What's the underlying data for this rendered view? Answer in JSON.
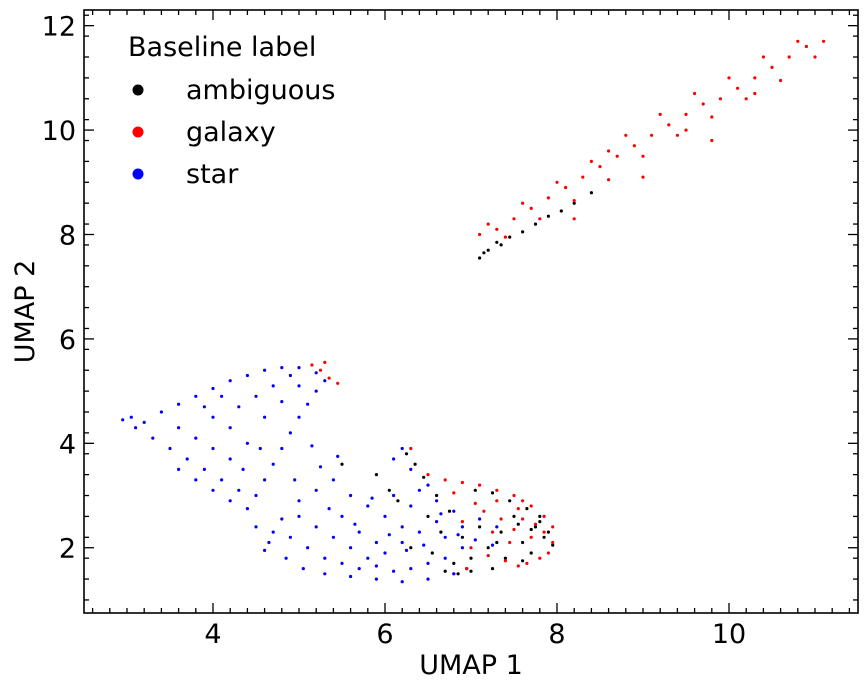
{
  "chart_data": {
    "type": "scatter",
    "title": "",
    "xlabel": "UMAP 1",
    "ylabel": "UMAP 2",
    "xlim": [
      2.5,
      11.5
    ],
    "ylim": [
      0.75,
      12.3
    ],
    "xticks": [
      4,
      6,
      8,
      10
    ],
    "yticks": [
      2,
      4,
      6,
      8,
      10,
      12
    ],
    "xtick_labels": [
      "4",
      "6",
      "8",
      "10"
    ],
    "ytick_labels": [
      "2",
      "4",
      "6",
      "8",
      "10",
      "12"
    ],
    "grid": false,
    "legend": {
      "title": "Baseline label",
      "placement": "top-left",
      "entries": [
        "ambiguous",
        "galaxy",
        "star"
      ]
    },
    "series": [
      {
        "name": "ambiguous",
        "color": "#000000",
        "points": [
          [
            6.25,
            3.8
          ],
          [
            6.35,
            3.6
          ],
          [
            6.45,
            3.35
          ],
          [
            6.6,
            3.0
          ],
          [
            6.75,
            2.7
          ],
          [
            6.9,
            2.2
          ],
          [
            7.0,
            1.8
          ],
          [
            7.2,
            2.0
          ],
          [
            7.35,
            2.3
          ],
          [
            7.5,
            2.6
          ],
          [
            7.6,
            2.1
          ],
          [
            7.7,
            1.9
          ],
          [
            7.75,
            2.4
          ],
          [
            7.8,
            2.5
          ],
          [
            7.85,
            2.2
          ],
          [
            7.8,
            2.6
          ],
          [
            7.7,
            2.35
          ],
          [
            7.55,
            2.45
          ],
          [
            7.4,
            1.8
          ],
          [
            7.3,
            2.1
          ],
          [
            7.1,
            2.4
          ],
          [
            6.95,
            1.6
          ],
          [
            6.85,
            1.5
          ],
          [
            6.7,
            1.55
          ],
          [
            6.8,
            1.7
          ],
          [
            5.5,
            3.6
          ],
          [
            5.9,
            3.4
          ],
          [
            6.05,
            3.1
          ],
          [
            6.15,
            2.9
          ],
          [
            6.5,
            2.6
          ],
          [
            6.65,
            2.3
          ],
          [
            7.05,
            3.1
          ],
          [
            7.25,
            3.05
          ],
          [
            7.45,
            2.9
          ],
          [
            7.65,
            2.75
          ],
          [
            7.9,
            2.3
          ],
          [
            7.95,
            2.05
          ],
          [
            7.6,
            1.75
          ],
          [
            7.25,
            1.6
          ],
          [
            7.0,
            1.55
          ],
          [
            6.3,
            2.0
          ],
          [
            6.55,
            1.9
          ],
          [
            7.1,
            7.55
          ],
          [
            7.2,
            7.7
          ],
          [
            7.3,
            7.85
          ],
          [
            7.45,
            7.95
          ],
          [
            7.6,
            8.05
          ],
          [
            7.75,
            8.2
          ],
          [
            7.9,
            8.35
          ],
          [
            8.05,
            8.45
          ],
          [
            8.2,
            8.6
          ],
          [
            8.4,
            8.8
          ],
          [
            7.15,
            7.65
          ],
          [
            7.35,
            7.8
          ]
        ]
      },
      {
        "name": "galaxy",
        "color": "#ff0000",
        "points": [
          [
            7.1,
            8.0
          ],
          [
            7.3,
            8.1
          ],
          [
            7.5,
            8.3
          ],
          [
            7.7,
            8.5
          ],
          [
            7.9,
            8.7
          ],
          [
            8.1,
            8.9
          ],
          [
            8.3,
            9.1
          ],
          [
            8.5,
            9.3
          ],
          [
            8.7,
            9.5
          ],
          [
            8.9,
            9.7
          ],
          [
            9.1,
            9.9
          ],
          [
            9.3,
            10.1
          ],
          [
            9.5,
            10.3
          ],
          [
            9.7,
            10.5
          ],
          [
            9.9,
            10.6
          ],
          [
            10.1,
            10.8
          ],
          [
            10.3,
            11.0
          ],
          [
            10.5,
            11.2
          ],
          [
            10.7,
            11.4
          ],
          [
            10.9,
            11.6
          ],
          [
            11.1,
            11.7
          ],
          [
            7.4,
            7.95
          ],
          [
            7.8,
            8.3
          ],
          [
            8.2,
            8.65
          ],
          [
            8.6,
            9.05
          ],
          [
            9.0,
            9.5
          ],
          [
            9.4,
            9.9
          ],
          [
            9.8,
            10.25
          ],
          [
            10.2,
            10.6
          ],
          [
            10.6,
            10.95
          ],
          [
            11.0,
            11.4
          ],
          [
            7.6,
            8.6
          ],
          [
            8.0,
            9.0
          ],
          [
            8.4,
            9.4
          ],
          [
            8.8,
            9.9
          ],
          [
            9.2,
            10.3
          ],
          [
            9.6,
            10.7
          ],
          [
            10.0,
            11.0
          ],
          [
            10.4,
            11.4
          ],
          [
            10.8,
            11.7
          ],
          [
            7.2,
            8.2
          ],
          [
            8.6,
            9.6
          ],
          [
            9.5,
            10.0
          ],
          [
            10.3,
            10.7
          ],
          [
            8.2,
            8.3
          ],
          [
            9.0,
            9.1
          ],
          [
            9.8,
            9.8
          ],
          [
            5.15,
            5.5
          ],
          [
            5.25,
            5.4
          ],
          [
            5.35,
            5.25
          ],
          [
            5.45,
            5.15
          ],
          [
            5.3,
            5.55
          ],
          [
            6.3,
            3.9
          ],
          [
            6.5,
            3.4
          ],
          [
            6.7,
            3.3
          ],
          [
            6.9,
            3.25
          ],
          [
            7.1,
            3.2
          ],
          [
            7.3,
            3.1
          ],
          [
            7.5,
            3.0
          ],
          [
            7.6,
            2.9
          ],
          [
            7.7,
            2.8
          ],
          [
            7.85,
            2.6
          ],
          [
            7.95,
            2.4
          ],
          [
            7.95,
            2.1
          ],
          [
            7.9,
            1.9
          ],
          [
            7.8,
            1.8
          ],
          [
            7.65,
            1.7
          ],
          [
            7.55,
            1.65
          ],
          [
            7.4,
            1.75
          ],
          [
            7.2,
            1.85
          ],
          [
            7.0,
            2.0
          ],
          [
            6.9,
            2.5
          ],
          [
            7.15,
            2.7
          ],
          [
            7.35,
            2.55
          ],
          [
            7.5,
            2.35
          ],
          [
            7.7,
            2.2
          ],
          [
            7.85,
            2.3
          ],
          [
            7.45,
            2.1
          ],
          [
            7.25,
            2.3
          ],
          [
            7.05,
            2.85
          ],
          [
            6.8,
            3.05
          ],
          [
            6.95,
            1.6
          ],
          [
            6.8,
            1.5
          ],
          [
            7.6,
            2.55
          ],
          [
            7.75,
            2.45
          ],
          [
            7.3,
            2.9
          ],
          [
            7.55,
            2.75
          ]
        ]
      },
      {
        "name": "star",
        "color": "#0000ff",
        "points": [
          [
            2.95,
            4.45
          ],
          [
            3.05,
            4.5
          ],
          [
            3.2,
            4.4
          ],
          [
            3.4,
            4.6
          ],
          [
            3.6,
            4.75
          ],
          [
            3.8,
            4.9
          ],
          [
            4.0,
            5.05
          ],
          [
            4.2,
            5.2
          ],
          [
            4.4,
            5.3
          ],
          [
            4.6,
            5.4
          ],
          [
            4.8,
            5.45
          ],
          [
            5.0,
            5.45
          ],
          [
            5.2,
            5.35
          ],
          [
            5.3,
            5.2
          ],
          [
            5.2,
            5.0
          ],
          [
            5.1,
            4.75
          ],
          [
            5.0,
            4.5
          ],
          [
            4.9,
            4.2
          ],
          [
            4.8,
            3.9
          ],
          [
            4.7,
            3.6
          ],
          [
            4.6,
            3.3
          ],
          [
            4.5,
            3.0
          ],
          [
            4.4,
            2.75
          ],
          [
            4.5,
            2.4
          ],
          [
            4.65,
            2.1
          ],
          [
            4.85,
            1.8
          ],
          [
            5.05,
            1.6
          ],
          [
            5.3,
            1.5
          ],
          [
            5.6,
            1.45
          ],
          [
            5.9,
            1.4
          ],
          [
            6.2,
            1.35
          ],
          [
            6.5,
            1.4
          ],
          [
            6.8,
            1.5
          ],
          [
            3.1,
            4.3
          ],
          [
            3.3,
            4.1
          ],
          [
            3.5,
            3.9
          ],
          [
            3.7,
            3.7
          ],
          [
            3.9,
            3.5
          ],
          [
            4.1,
            3.3
          ],
          [
            4.3,
            3.1
          ],
          [
            3.6,
            4.3
          ],
          [
            3.8,
            4.1
          ],
          [
            4.0,
            4.5
          ],
          [
            4.2,
            4.3
          ],
          [
            4.4,
            4.0
          ],
          [
            4.3,
            4.7
          ],
          [
            4.5,
            4.9
          ],
          [
            4.7,
            5.1
          ],
          [
            4.1,
            4.9
          ],
          [
            3.9,
            4.7
          ],
          [
            4.6,
            4.5
          ],
          [
            4.8,
            4.8
          ],
          [
            5.0,
            5.1
          ],
          [
            4.9,
            5.3
          ],
          [
            4.2,
            3.7
          ],
          [
            4.0,
            3.9
          ],
          [
            3.8,
            3.3
          ],
          [
            4.0,
            3.1
          ],
          [
            4.2,
            2.9
          ],
          [
            3.6,
            3.5
          ],
          [
            4.35,
            3.5
          ],
          [
            4.55,
            3.9
          ],
          [
            5.0,
            2.6
          ],
          [
            5.2,
            2.4
          ],
          [
            5.4,
            2.2
          ],
          [
            5.6,
            2.0
          ],
          [
            5.8,
            1.8
          ],
          [
            6.0,
            1.9
          ],
          [
            6.2,
            2.1
          ],
          [
            6.4,
            2.3
          ],
          [
            6.6,
            2.5
          ],
          [
            6.8,
            2.7
          ],
          [
            5.1,
            2.0
          ],
          [
            5.3,
            1.8
          ],
          [
            5.5,
            1.7
          ],
          [
            5.7,
            1.6
          ],
          [
            5.9,
            1.65
          ],
          [
            6.1,
            1.55
          ],
          [
            6.3,
            1.6
          ],
          [
            6.5,
            1.7
          ],
          [
            6.7,
            1.8
          ],
          [
            6.9,
            2.0
          ],
          [
            5.0,
            2.9
          ],
          [
            5.2,
            3.1
          ],
          [
            5.4,
            3.3
          ],
          [
            5.6,
            3.0
          ],
          [
            5.8,
            2.8
          ],
          [
            6.0,
            2.6
          ],
          [
            6.2,
            2.4
          ],
          [
            5.5,
            2.6
          ],
          [
            5.7,
            2.3
          ],
          [
            5.9,
            2.1
          ],
          [
            6.1,
            3.0
          ],
          [
            6.3,
            2.8
          ],
          [
            6.5,
            3.2
          ],
          [
            6.1,
            3.7
          ],
          [
            6.2,
            3.9
          ],
          [
            6.3,
            3.5
          ],
          [
            6.4,
            3.1
          ],
          [
            6.6,
            2.9
          ],
          [
            6.7,
            2.2
          ],
          [
            6.9,
            2.4
          ],
          [
            7.1,
            2.55
          ],
          [
            7.3,
            2.4
          ],
          [
            4.7,
            2.3
          ],
          [
            4.9,
            2.2
          ],
          [
            4.6,
            1.95
          ],
          [
            4.8,
            2.55
          ],
          [
            5.35,
            2.75
          ],
          [
            5.65,
            2.45
          ],
          [
            5.85,
            2.95
          ],
          [
            6.05,
            2.25
          ],
          [
            6.25,
            1.95
          ],
          [
            6.45,
            2.05
          ],
          [
            6.65,
            2.65
          ],
          [
            6.85,
            2.25
          ],
          [
            7.05,
            2.15
          ],
          [
            7.25,
            2.05
          ],
          [
            5.25,
            3.55
          ],
          [
            5.45,
            3.75
          ],
          [
            5.15,
            3.95
          ],
          [
            4.95,
            3.3
          ]
        ]
      }
    ]
  }
}
